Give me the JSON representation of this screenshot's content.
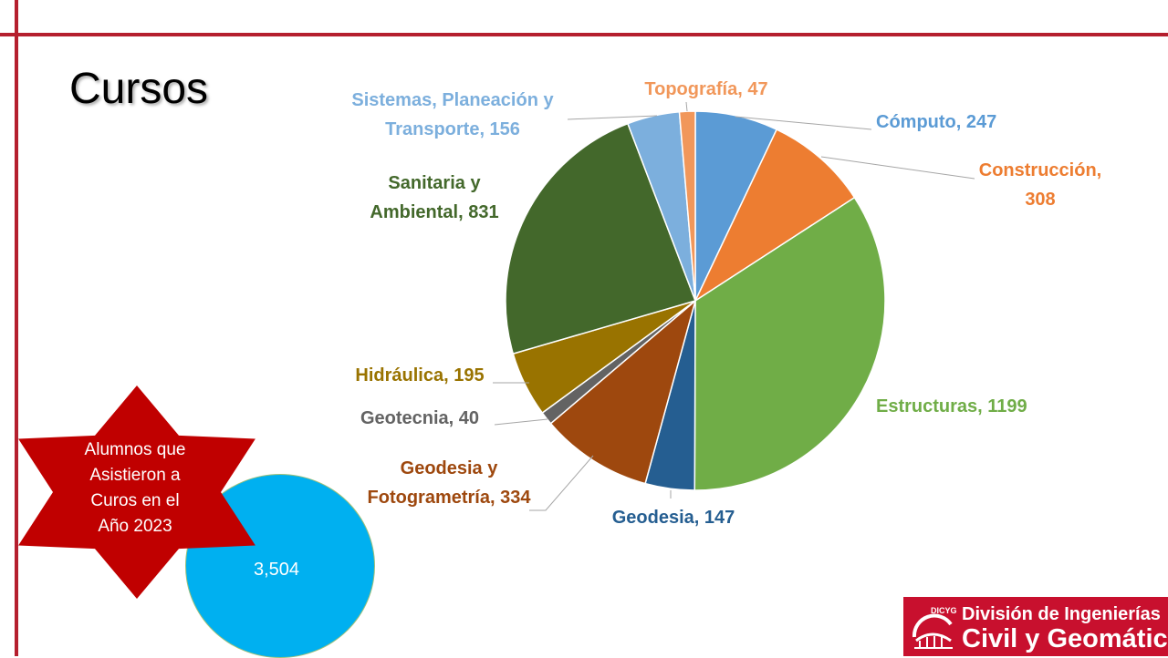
{
  "page": {
    "title": "Cursos"
  },
  "attendance": {
    "label_lines": [
      "Alumnos que",
      "Asistieron a",
      "Curos en el",
      "Año 2023"
    ],
    "value": "3,504",
    "circle_color": "#00b0f0",
    "star_color": "#c00000"
  },
  "logo": {
    "emblem_text": "DICYG",
    "line1": "División de Ingenierías",
    "line2": "Civil y Geomática",
    "color": "#c8102e"
  },
  "chart_data": {
    "type": "pie",
    "title": "",
    "slices": [
      {
        "label": "Cómputo",
        "value": 247,
        "label_lines": [
          "Cómputo, 247"
        ],
        "color": "#5b9bd5"
      },
      {
        "label": "Construcción",
        "value": 308,
        "label_lines": [
          "Construcción,",
          "308"
        ],
        "color": "#ed7d31"
      },
      {
        "label": "Estructuras",
        "value": 1199,
        "label_lines": [
          "Estructuras, 1199"
        ],
        "color": "#70ad47"
      },
      {
        "label": "Geodesia",
        "value": 147,
        "label_lines": [
          "Geodesia, 147"
        ],
        "color": "#255e91"
      },
      {
        "label": "Geodesia y Fotogrametría",
        "value": 334,
        "label_lines": [
          "Geodesia y",
          "Fotogrametría, 334"
        ],
        "color": "#9e480e"
      },
      {
        "label": "Geotecnia",
        "value": 40,
        "label_lines": [
          "Geotecnia, 40"
        ],
        "color": "#636363"
      },
      {
        "label": "Hidráulica",
        "value": 195,
        "label_lines": [
          "Hidráulica, 195"
        ],
        "color": "#997300"
      },
      {
        "label": "Sanitaria y Ambiental",
        "value": 831,
        "label_lines": [
          "Sanitaria y",
          "Ambiental, 831"
        ],
        "color": "#43682b"
      },
      {
        "label": "Sistemas, Planeación y Transporte",
        "value": 156,
        "label_lines": [
          "Sistemas, Planeación y",
          "Transporte, 156"
        ],
        "color": "#7cafdd"
      },
      {
        "label": "Topografía",
        "value": 47,
        "label_lines": [
          "Topografía, 47"
        ],
        "color": "#f1975a"
      }
    ],
    "legend": "none",
    "data_labels": "outside with leader lines"
  }
}
